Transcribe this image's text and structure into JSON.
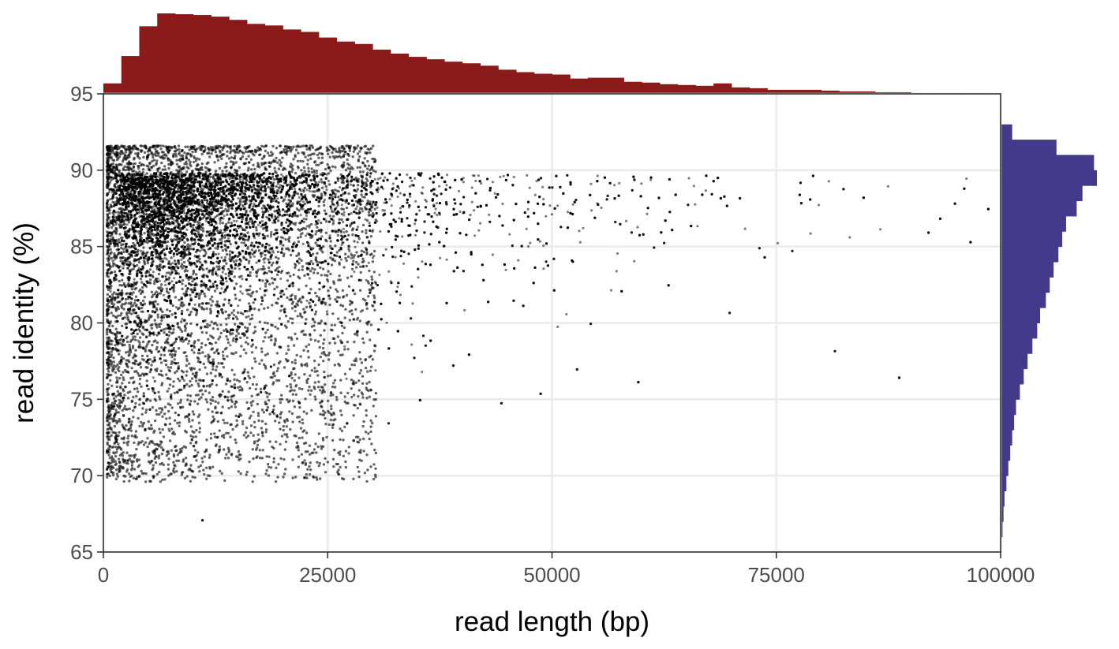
{
  "chart_data": {
    "type": "scatter",
    "title": "",
    "xlabel": "read length (bp)",
    "ylabel": "read identity (%)",
    "xlim": [
      0,
      100000
    ],
    "ylim": [
      65,
      95
    ],
    "x_ticks": [
      0,
      25000,
      50000,
      75000,
      100000
    ],
    "x_tick_labels": [
      "0",
      "25000",
      "50000",
      "75000",
      "100000"
    ],
    "y_ticks": [
      65,
      70,
      75,
      80,
      85,
      90,
      95
    ],
    "y_tick_labels": [
      "65",
      "70",
      "75",
      "80",
      "85",
      "90",
      "95"
    ],
    "grid": true,
    "legend": "none",
    "point_color": "#000000",
    "point_alpha": 0.5,
    "scatter_distribution": {
      "description_of_density": "very dense below 25000 bp and above 80% identity; sparse tail to 100000 bp",
      "length_mode_bp": 8000,
      "identity_mode_pct": 89.5
    },
    "marginal_top": {
      "type": "histogram",
      "color": "#8b1a1a",
      "bin_width": 2000,
      "bin_start": 0,
      "counts": [
        0.13,
        0.47,
        0.84,
        1.0,
        0.99,
        0.98,
        0.96,
        0.92,
        0.87,
        0.85,
        0.8,
        0.77,
        0.7,
        0.65,
        0.62,
        0.55,
        0.5,
        0.46,
        0.43,
        0.4,
        0.38,
        0.35,
        0.3,
        0.27,
        0.25,
        0.24,
        0.19,
        0.2,
        0.2,
        0.15,
        0.14,
        0.12,
        0.11,
        0.1,
        0.13,
        0.08,
        0.07,
        0.05,
        0.05,
        0.05,
        0.04,
        0.03,
        0.03,
        0.02,
        0.02,
        0.01,
        0.01,
        0.01,
        0.01,
        0.0
      ]
    },
    "marginal_right": {
      "type": "histogram",
      "color": "#433a8c",
      "bin_width": 1,
      "bins_top_to_bottom_start": 94,
      "counts": [
        0.0,
        0.0,
        0.12,
        0.58,
        0.97,
        1.0,
        0.85,
        0.79,
        0.68,
        0.64,
        0.6,
        0.55,
        0.51,
        0.47,
        0.41,
        0.38,
        0.33,
        0.28,
        0.24,
        0.2,
        0.16,
        0.14,
        0.12,
        0.1,
        0.08,
        0.06,
        0.04,
        0.03,
        0.02,
        0.01
      ]
    }
  }
}
